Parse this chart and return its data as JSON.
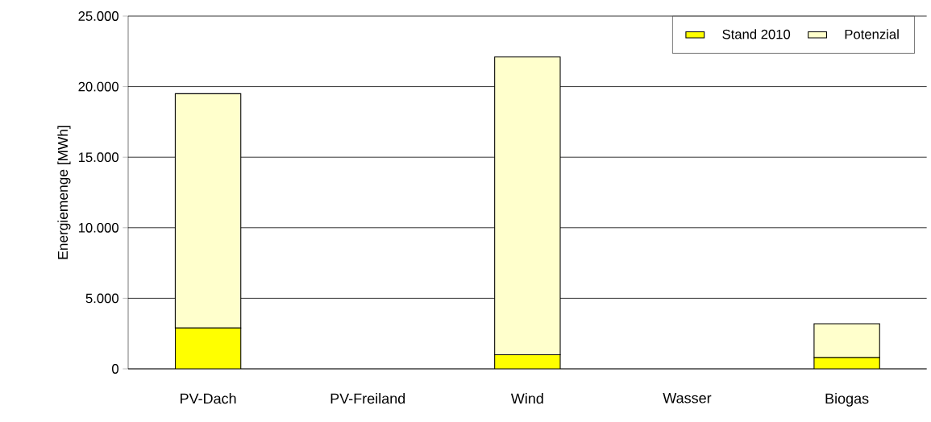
{
  "chart_data": {
    "type": "bar",
    "stacked": true,
    "ylabel": "Energiemenge [MWh]",
    "categories": [
      "PV-Dach",
      "PV-Freiland",
      "Wind",
      "Wasser",
      "Biogas"
    ],
    "series": [
      {
        "name": "Stand 2010",
        "color": "#ffff00",
        "values": [
          2900,
          0,
          1000,
          0,
          800
        ]
      },
      {
        "name": "Potenzial",
        "color": "#ffffcc",
        "values": [
          16600,
          0,
          21100,
          0,
          2400
        ]
      }
    ],
    "ylim": [
      0,
      25000
    ],
    "yticks": [
      0,
      {
        "value": 5000,
        "label": "5.000"
      },
      {
        "value": 10000,
        "label": "10.000"
      },
      {
        "value": 15000,
        "label": "15.000"
      },
      {
        "value": 20000,
        "label": "20.000"
      },
      {
        "value": 25000,
        "label": "25.000"
      }
    ],
    "grid": "y",
    "legend": "top right"
  }
}
